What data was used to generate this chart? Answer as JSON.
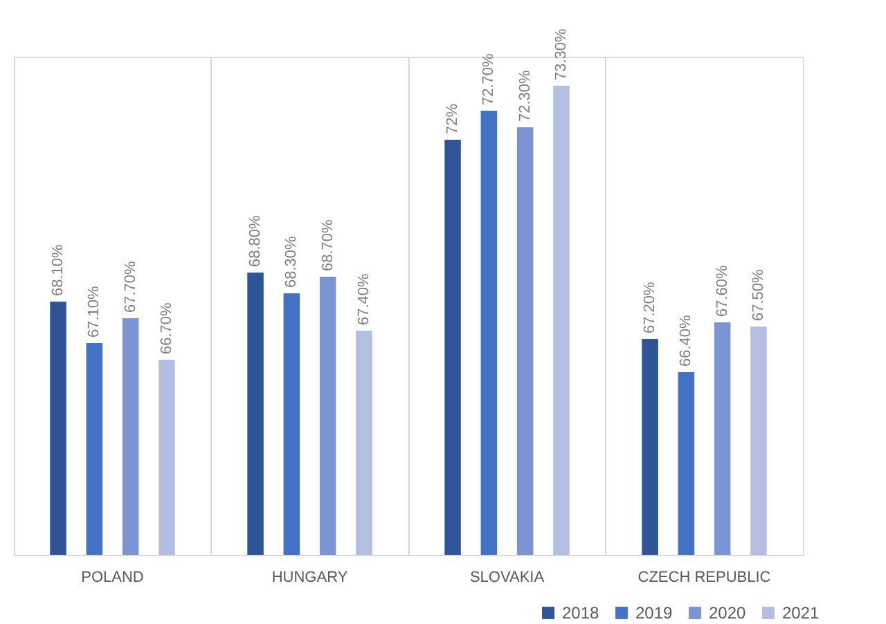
{
  "chart_data": {
    "type": "bar",
    "categories": [
      "POLAND",
      "HUNGARY",
      "SLOVAKIA",
      "CZECH REPUBLIC"
    ],
    "series": [
      {
        "name": "2018",
        "color": "#2f5597",
        "values": [
          68.1,
          68.8,
          72,
          67.2
        ],
        "value_labels": [
          "68.10%",
          "68.80%",
          "72%",
          "67.20%"
        ]
      },
      {
        "name": "2019",
        "color": "#4472c4",
        "values": [
          67.1,
          68.3,
          72.7,
          66.4
        ],
        "value_labels": [
          "67.10%",
          "68.30%",
          "72.70%",
          "66.40%"
        ]
      },
      {
        "name": "2020",
        "color": "#7c95d2",
        "values": [
          67.7,
          68.7,
          72.3,
          67.6
        ],
        "value_labels": [
          "67.70%",
          "68.70%",
          "72.30%",
          "67.60%"
        ]
      },
      {
        "name": "2021",
        "color": "#b4bde2",
        "values": [
          66.7,
          67.4,
          73.3,
          67.5
        ],
        "value_labels": [
          "66.70%",
          "67.40%",
          "73.30%",
          "67.50%"
        ]
      }
    ],
    "ylim": [
      62,
      74
    ],
    "tick_labels": "x",
    "grid": "x",
    "legend": "bottom right"
  }
}
